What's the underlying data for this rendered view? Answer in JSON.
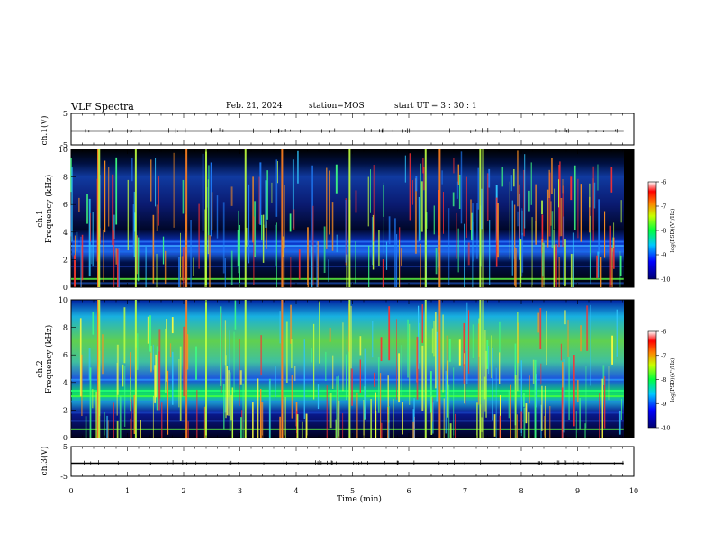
{
  "header": {
    "title": "VLF Spectra",
    "date": "Feb. 21, 2024",
    "station": "station=MOS",
    "start_ut": "start  UT  =   3 : 30 : 1"
  },
  "chart_data": {
    "type": "heatmap",
    "title": "VLF Spectra",
    "xlabel": "Time  (min)",
    "xlim": [
      0,
      10
    ],
    "x_ticks": [
      "0",
      "1",
      "2",
      "3",
      "4",
      "5",
      "6",
      "7",
      "8",
      "9",
      "10"
    ],
    "panels": [
      {
        "id": "ch1-waveform",
        "ylabel": "ch.1(V)",
        "ylim": [
          -5,
          5
        ],
        "y_ticks": [
          "5",
          "-5"
        ],
        "signal_level": 0,
        "data_end_min": 9.82
      },
      {
        "id": "ch1-spectrogram",
        "ylabel": "Frequency  (kHz)",
        "channel_label": "ch.1",
        "ylim": [
          0,
          10
        ],
        "y_ticks": [
          "0",
          "2",
          "4",
          "6",
          "8",
          "10"
        ],
        "data_end_min": 9.82,
        "colorbar": {
          "label": "log(PSD)(V²/Hz)",
          "range": [
            -10,
            -6
          ],
          "ticks": [
            "-6",
            "-7",
            "-8",
            "-9",
            "-10"
          ]
        }
      },
      {
        "id": "ch2-spectrogram",
        "ylabel": "Frequency  (kHz)",
        "channel_label": "ch.2",
        "ylim": [
          0,
          10
        ],
        "y_ticks": [
          "0",
          "2",
          "4",
          "6",
          "8",
          "10"
        ],
        "data_end_min": 9.82,
        "colorbar": {
          "label": "log(PSD)(V²/Hz)",
          "range": [
            -10,
            -6
          ],
          "ticks": [
            "-6",
            "-7",
            "-8",
            "-9",
            "-10"
          ]
        }
      },
      {
        "id": "ch3-waveform",
        "ylabel": "ch.3(V)",
        "ylim": [
          -5,
          5
        ],
        "y_ticks": [
          "5",
          "-5"
        ],
        "signal_level": 0,
        "data_end_min": 9.82
      }
    ],
    "intense_sferic_times_min": [
      0.48,
      0.5,
      1.15,
      2.05,
      2.4,
      3.1,
      3.75,
      4.95,
      6.3,
      6.55,
      7.27,
      7.32
    ]
  }
}
